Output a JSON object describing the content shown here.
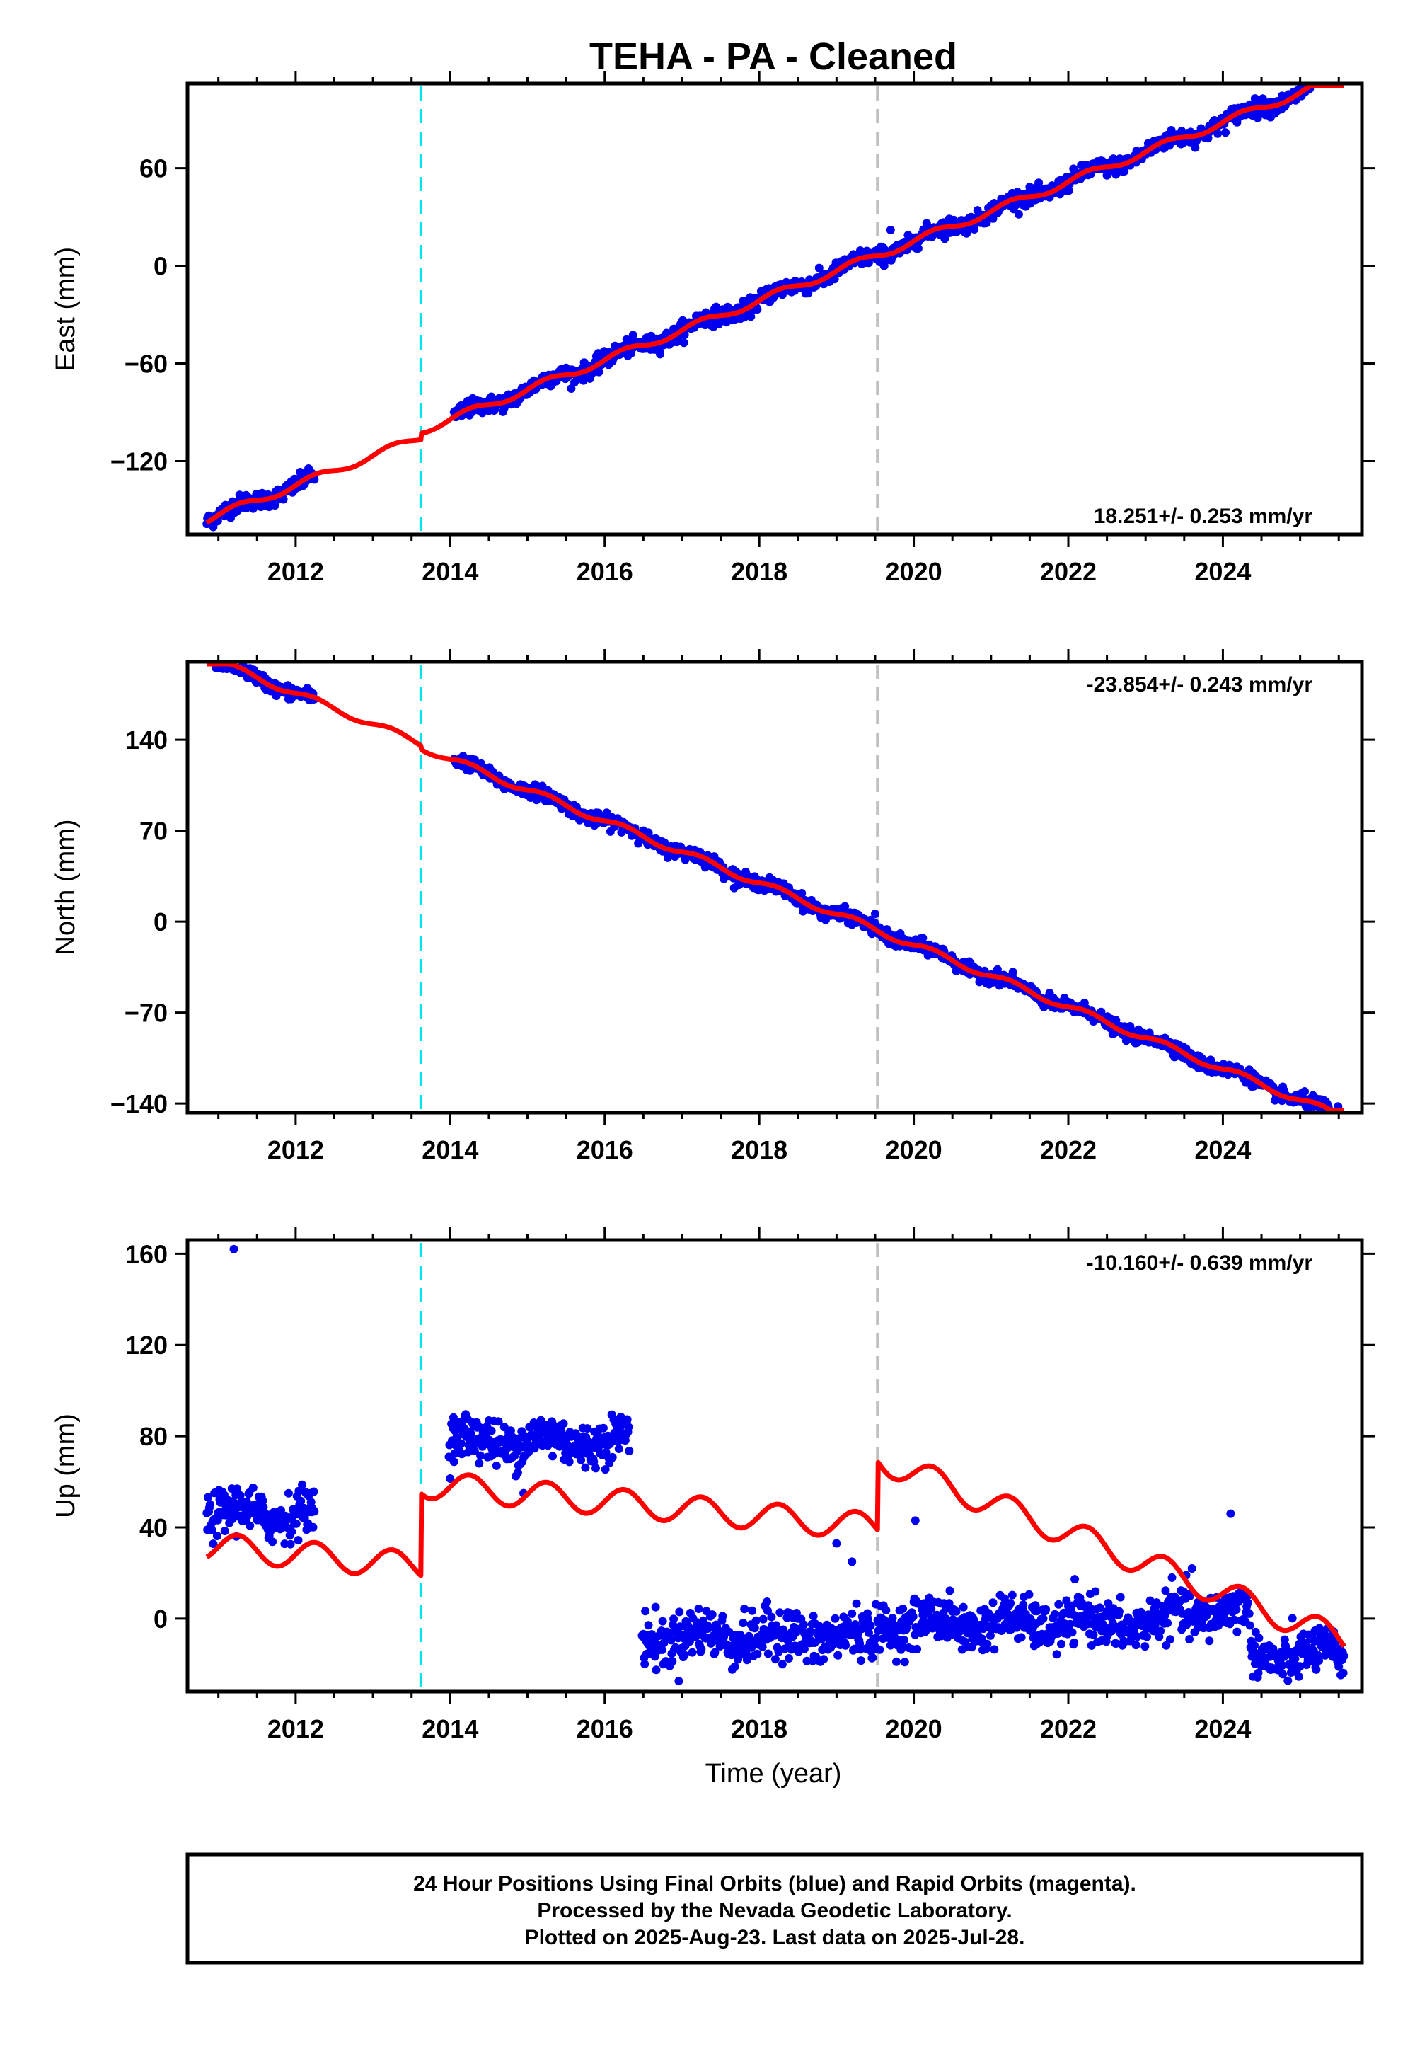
{
  "chart_data": {
    "type": "scatter",
    "title": "TEHA  - PA - Cleaned",
    "xlabel": "Time (year)",
    "xlim": [
      2010.6,
      2025.8
    ],
    "x_ticks": [
      2012,
      2014,
      2016,
      2018,
      2020,
      2022,
      2024
    ],
    "vertical_lines": [
      {
        "x": 2013.62,
        "color": "#00e5ee",
        "style": "dashed"
      },
      {
        "x": 2019.53,
        "color": "#c0c0c0",
        "style": "dashed"
      }
    ],
    "point_color": "#0000ee",
    "model_color": "#ff0000",
    "panels": [
      {
        "name": "east",
        "ylabel": "East (mm)",
        "ylim": [
          -165,
          112
        ],
        "y_ticks": [
          -120,
          -60,
          0,
          60
        ],
        "rate_text": "18.251+/- 0.253 mm/yr",
        "data_span": [
          2010.85,
          2025.57
        ],
        "gaps": [
          [
            2012.25,
            2014.05
          ]
        ],
        "model": {
          "ref_year": 2019.5,
          "offset": 2.0,
          "rate": 18.25,
          "amp": 2.3,
          "jumps": [
            [
              2013.62,
              4.0
            ]
          ]
        },
        "noise": 2.5,
        "outliers": [
          [
            2019.7,
            22.0
          ]
        ]
      },
      {
        "name": "north",
        "ylabel": "North (mm)",
        "ylim": [
          -147,
          200
        ],
        "y_ticks": [
          -140,
          -70,
          0,
          70,
          140
        ],
        "rate_text": "-23.854+/- 0.243 mm/yr",
        "data_span": [
          2010.85,
          2025.57
        ],
        "gaps": [
          [
            2012.25,
            2014.05
          ]
        ],
        "model": {
          "ref_year": 2019.5,
          "offset": -3.0,
          "rate": -23.85,
          "amp": 2.5,
          "jumps": [
            [
              2013.62,
              -3.0
            ]
          ]
        },
        "noise": 2.5,
        "outliers": [
          [
            2019.5,
            6.0
          ]
        ]
      },
      {
        "name": "up",
        "ylabel": "Up (mm)",
        "ylim": [
          -32,
          166
        ],
        "y_ticks": [
          0,
          40,
          80,
          120,
          160
        ],
        "rate_text": "-10.160+/- 0.639 mm/yr",
        "data_span": [
          2010.85,
          2025.57
        ],
        "gaps": [
          [
            2012.25,
            2013.98
          ],
          [
            2016.32,
            2016.48
          ]
        ],
        "model": {
          "ref_year": 2013.62,
          "offset": 23.0,
          "rate": -3.2,
          "amp": 6.0,
          "jumps": [
            [
              2013.62,
              36.0
            ],
            [
              2019.53,
              30.0
            ]
          ],
          "trend_after": [
            [
              2019.53,
              -10.0
            ]
          ]
        },
        "data_levels": [
          [
            2010.85,
            2012.25,
            46.0,
            5.0
          ],
          [
            2013.98,
            2016.32,
            78.0,
            5.0
          ],
          [
            2016.48,
            2019.53,
            -8.0,
            5.5
          ],
          [
            2019.53,
            2023.3,
            -2.0,
            5.0
          ],
          [
            2023.3,
            2024.35,
            3.0,
            5.0
          ],
          [
            2024.35,
            2025.57,
            -16.0,
            5.0
          ]
        ],
        "outliers": [
          [
            2011.2,
            162.0
          ],
          [
            2014.95,
            55.0
          ],
          [
            2020.02,
            43.0
          ],
          [
            2024.1,
            46.0
          ],
          [
            2023.6,
            22.0
          ],
          [
            2019.0,
            33.0
          ],
          [
            2019.2,
            25.0
          ]
        ]
      }
    ],
    "footer": [
      "24 Hour Positions Using Final Orbits (blue) and Rapid Orbits (magenta).",
      "Processed by the Nevada Geodetic Laboratory.",
      "Plotted on 2025-Aug-23. Last data on 2025-Jul-28."
    ]
  }
}
